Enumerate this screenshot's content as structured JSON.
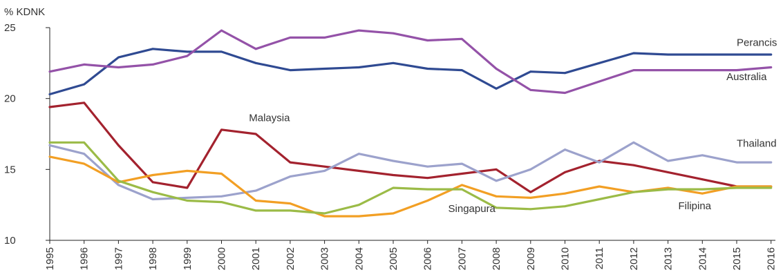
{
  "chart_data": {
    "type": "line",
    "ylabel": "% KDNK",
    "ylim": [
      10,
      25
    ],
    "yticks": [
      10,
      15,
      20,
      25
    ],
    "grid": false,
    "legend": "inline labels",
    "categories": [
      "1995",
      "1996",
      "1997",
      "1998",
      "1999",
      "2000",
      "2001",
      "2002",
      "2003",
      "2004",
      "2005",
      "2006",
      "2007",
      "2008",
      "2009",
      "2010",
      "2011",
      "2012",
      "2013",
      "2014",
      "2015",
      "2016"
    ],
    "series": [
      {
        "name": "Perancis",
        "color": "#2f4a92",
        "values": [
          20.3,
          21.0,
          22.9,
          23.5,
          23.3,
          23.3,
          22.5,
          22.0,
          22.1,
          22.2,
          22.5,
          22.1,
          22.0,
          20.7,
          21.9,
          21.8,
          22.5,
          23.2,
          23.1,
          23.1,
          23.1,
          23.1
        ]
      },
      {
        "name": "Australia",
        "color": "#9452a8",
        "values": [
          21.9,
          22.4,
          22.2,
          22.4,
          23.0,
          24.8,
          23.5,
          24.3,
          24.3,
          24.8,
          24.6,
          24.1,
          24.2,
          22.1,
          20.6,
          20.4,
          21.2,
          22.0,
          22.0,
          22.0,
          22.0,
          22.2
        ]
      },
      {
        "name": "Malaysia",
        "color": "#a3222e",
        "values": [
          19.4,
          19.7,
          16.7,
          14.1,
          13.7,
          17.8,
          17.5,
          15.5,
          15.2,
          14.9,
          14.6,
          14.4,
          14.7,
          15.0,
          13.4,
          14.8,
          15.6,
          15.3,
          14.8,
          14.3,
          13.8,
          13.8
        ]
      },
      {
        "name": "Thailand",
        "color": "#9ca2cc",
        "values": [
          16.7,
          16.1,
          13.9,
          12.9,
          13.0,
          13.1,
          13.5,
          14.5,
          14.9,
          16.1,
          15.6,
          15.2,
          15.4,
          14.2,
          15.0,
          16.4,
          15.5,
          16.9,
          15.6,
          16.0,
          15.5,
          15.5
        ]
      },
      {
        "name": "Singapura",
        "color": "#f29f24",
        "values": [
          15.9,
          15.4,
          14.1,
          14.6,
          14.9,
          14.7,
          12.8,
          12.6,
          11.7,
          11.7,
          11.9,
          12.8,
          13.9,
          13.1,
          13.0,
          13.3,
          13.8,
          13.4,
          13.7,
          13.3,
          13.8,
          13.8
        ]
      },
      {
        "name": "Filipina",
        "color": "#9bbb47",
        "values": [
          16.9,
          16.9,
          14.2,
          13.4,
          12.8,
          12.7,
          12.1,
          12.1,
          11.9,
          12.5,
          13.7,
          13.6,
          13.6,
          12.3,
          12.2,
          12.4,
          12.9,
          13.4,
          13.6,
          13.6,
          13.7,
          13.7
        ]
      }
    ],
    "series_labels": [
      {
        "text": "Perancis",
        "anchor": "2015",
        "value": 23.7
      },
      {
        "text": "Australia",
        "anchor": "2014.7",
        "value": 21.3
      },
      {
        "text": "Malaysia",
        "anchor": "2000.8",
        "value": 18.4
      },
      {
        "text": "Thailand",
        "anchor": "2015",
        "value": 16.6
      },
      {
        "text": "Singapura",
        "anchor": "2006.6",
        "value": 12.0
      },
      {
        "text": "Filipina",
        "anchor": "2013.3",
        "value": 12.2
      }
    ]
  }
}
